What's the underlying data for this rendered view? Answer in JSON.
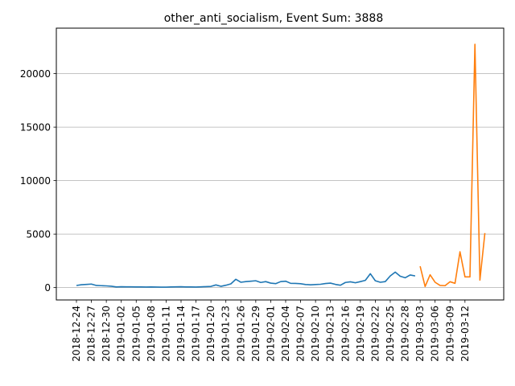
{
  "chart_data": {
    "type": "line",
    "title": "other_anti_socialism, Event Sum: 3888",
    "xlabel": "",
    "ylabel": "",
    "ylim": [
      -1155,
      24255
    ],
    "yticks": [
      0,
      5000,
      10000,
      15000,
      20000
    ],
    "ytick_labels": [
      "0",
      "5000",
      "10000",
      "15000",
      "20000"
    ],
    "xticks": [
      "2018-12-24",
      "2018-12-27",
      "2018-12-30",
      "2019-01-02",
      "2019-01-05",
      "2019-01-08",
      "2019-01-11",
      "2019-01-14",
      "2019-01-17",
      "2019-01-20",
      "2019-01-23",
      "2019-01-26",
      "2019-01-29",
      "2019-02-01",
      "2019-02-04",
      "2019-02-07",
      "2019-02-10",
      "2019-02-13",
      "2019-02-16",
      "2019-02-19",
      "2019-02-22",
      "2019-02-25",
      "2019-02-28",
      "2019-03-03",
      "2019-03-06",
      "2019-03-09",
      "2019-03-12"
    ],
    "grid": "horizontal",
    "series": [
      {
        "color": "#1f77b4",
        "x_start": "2018-12-24",
        "values": [
          200,
          270,
          300,
          330,
          200,
          180,
          160,
          130,
          60,
          80,
          70,
          70,
          60,
          60,
          50,
          60,
          50,
          40,
          40,
          60,
          70,
          80,
          60,
          60,
          50,
          70,
          90,
          110,
          250,
          120,
          220,
          350,
          780,
          500,
          560,
          600,
          640,
          480,
          560,
          420,
          370,
          560,
          600,
          400,
          390,
          360,
          290,
          260,
          290,
          310,
          380,
          420,
          300,
          220,
          480,
          540,
          450,
          560,
          680,
          1300,
          640,
          500,
          560,
          1090,
          1450,
          1060,
          920,
          1180,
          1090
        ]
      },
      {
        "color": "#ff7f0e",
        "x_start": "2019-03-03",
        "values": [
          2000,
          100,
          1200,
          500,
          200,
          180,
          550,
          400,
          3350,
          1000,
          1000,
          22750,
          700,
          5100
        ]
      }
    ]
  }
}
